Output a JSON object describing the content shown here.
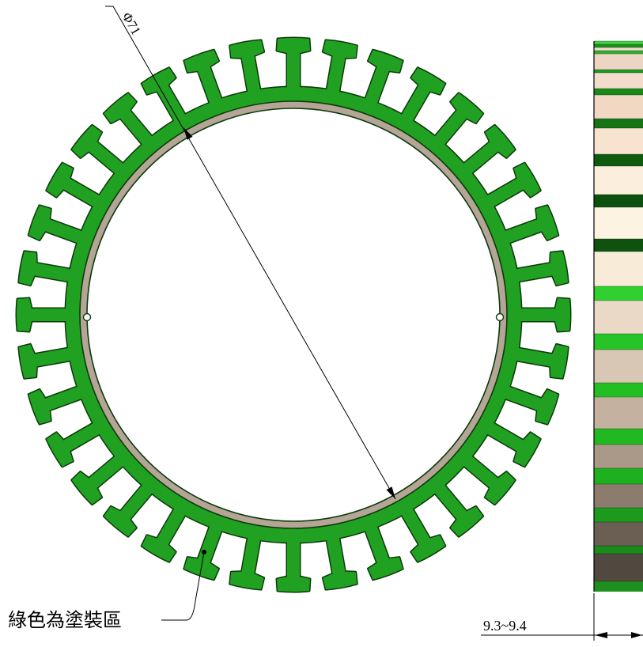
{
  "drawing": {
    "diameter_label": "Φ71",
    "thickness_label": "9.3~9.4",
    "coating_note": "綠色為塗裝區"
  },
  "colors": {
    "coating_area": "#21a121",
    "ring": "#b5a596",
    "outline": "#0a3a0a",
    "dimension_line": "#000000"
  }
}
